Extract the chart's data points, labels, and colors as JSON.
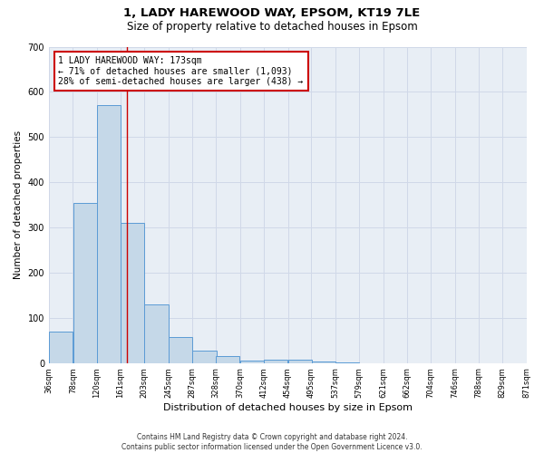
{
  "title": "1, LADY HAREWOOD WAY, EPSOM, KT19 7LE",
  "subtitle": "Size of property relative to detached houses in Epsom",
  "xlabel": "Distribution of detached houses by size in Epsom",
  "ylabel": "Number of detached properties",
  "property_size": 173,
  "property_label": "1 LADY HAREWOOD WAY: 173sqm",
  "annotation_line1": "← 71% of detached houses are smaller (1,093)",
  "annotation_line2": "28% of semi-detached houses are larger (438) →",
  "bin_edges": [
    36,
    78,
    120,
    161,
    203,
    245,
    287,
    328,
    370,
    412,
    454,
    495,
    537,
    579,
    621,
    662,
    704,
    746,
    788,
    829,
    871
  ],
  "bar_heights": [
    70,
    355,
    570,
    310,
    130,
    57,
    27,
    15,
    5,
    8,
    8,
    3,
    1,
    0,
    0,
    0,
    0,
    0,
    0,
    0
  ],
  "bar_color": "#c5d8e8",
  "bar_edge_color": "#5b9bd5",
  "vline_color": "#cc0000",
  "vline_x": 173,
  "annotation_box_color": "#cc0000",
  "background_color": "#ffffff",
  "grid_color": "#d0d8e8",
  "ax_bg_color": "#e8eef5",
  "ylim": [
    0,
    700
  ],
  "yticks": [
    0,
    100,
    200,
    300,
    400,
    500,
    600,
    700
  ],
  "footer": "Contains HM Land Registry data © Crown copyright and database right 2024.\nContains public sector information licensed under the Open Government Licence v3.0."
}
